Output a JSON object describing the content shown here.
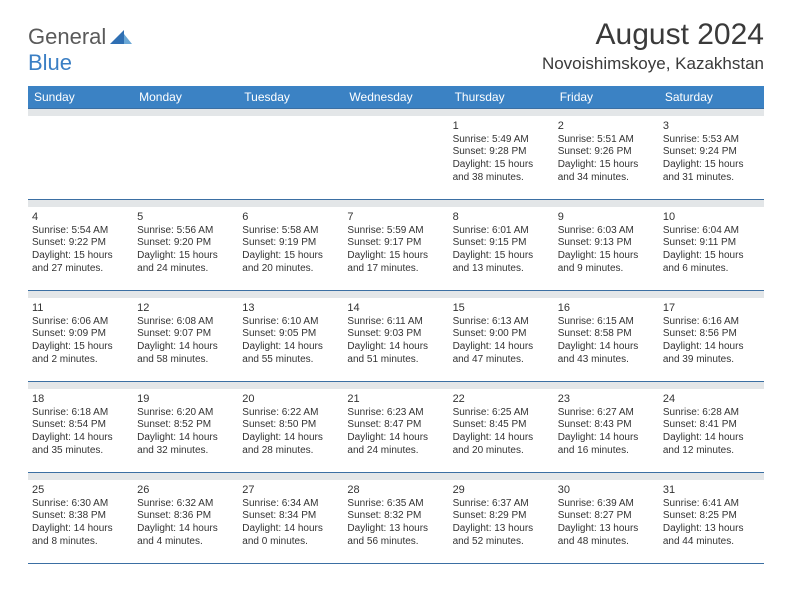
{
  "logo": {
    "word1": "General",
    "word2": "Blue",
    "tri_color": "#2f6fb3"
  },
  "title": "August 2024",
  "location": "Novoishimskoye, Kazakhstan",
  "colors": {
    "header_bg": "#3b82c4",
    "header_fg": "#ffffff",
    "sep_bg": "#e3e6e8",
    "rule": "#3b6fa3",
    "text": "#333333"
  },
  "dow": [
    "Sunday",
    "Monday",
    "Tuesday",
    "Wednesday",
    "Thursday",
    "Friday",
    "Saturday"
  ],
  "weeks": [
    [
      null,
      null,
      null,
      null,
      {
        "n": "1",
        "sr": "Sunrise: 5:49 AM",
        "ss": "Sunset: 9:28 PM",
        "dl1": "Daylight: 15 hours",
        "dl2": "and 38 minutes."
      },
      {
        "n": "2",
        "sr": "Sunrise: 5:51 AM",
        "ss": "Sunset: 9:26 PM",
        "dl1": "Daylight: 15 hours",
        "dl2": "and 34 minutes."
      },
      {
        "n": "3",
        "sr": "Sunrise: 5:53 AM",
        "ss": "Sunset: 9:24 PM",
        "dl1": "Daylight: 15 hours",
        "dl2": "and 31 minutes."
      }
    ],
    [
      {
        "n": "4",
        "sr": "Sunrise: 5:54 AM",
        "ss": "Sunset: 9:22 PM",
        "dl1": "Daylight: 15 hours",
        "dl2": "and 27 minutes."
      },
      {
        "n": "5",
        "sr": "Sunrise: 5:56 AM",
        "ss": "Sunset: 9:20 PM",
        "dl1": "Daylight: 15 hours",
        "dl2": "and 24 minutes."
      },
      {
        "n": "6",
        "sr": "Sunrise: 5:58 AM",
        "ss": "Sunset: 9:19 PM",
        "dl1": "Daylight: 15 hours",
        "dl2": "and 20 minutes."
      },
      {
        "n": "7",
        "sr": "Sunrise: 5:59 AM",
        "ss": "Sunset: 9:17 PM",
        "dl1": "Daylight: 15 hours",
        "dl2": "and 17 minutes."
      },
      {
        "n": "8",
        "sr": "Sunrise: 6:01 AM",
        "ss": "Sunset: 9:15 PM",
        "dl1": "Daylight: 15 hours",
        "dl2": "and 13 minutes."
      },
      {
        "n": "9",
        "sr": "Sunrise: 6:03 AM",
        "ss": "Sunset: 9:13 PM",
        "dl1": "Daylight: 15 hours",
        "dl2": "and 9 minutes."
      },
      {
        "n": "10",
        "sr": "Sunrise: 6:04 AM",
        "ss": "Sunset: 9:11 PM",
        "dl1": "Daylight: 15 hours",
        "dl2": "and 6 minutes."
      }
    ],
    [
      {
        "n": "11",
        "sr": "Sunrise: 6:06 AM",
        "ss": "Sunset: 9:09 PM",
        "dl1": "Daylight: 15 hours",
        "dl2": "and 2 minutes."
      },
      {
        "n": "12",
        "sr": "Sunrise: 6:08 AM",
        "ss": "Sunset: 9:07 PM",
        "dl1": "Daylight: 14 hours",
        "dl2": "and 58 minutes."
      },
      {
        "n": "13",
        "sr": "Sunrise: 6:10 AM",
        "ss": "Sunset: 9:05 PM",
        "dl1": "Daylight: 14 hours",
        "dl2": "and 55 minutes."
      },
      {
        "n": "14",
        "sr": "Sunrise: 6:11 AM",
        "ss": "Sunset: 9:03 PM",
        "dl1": "Daylight: 14 hours",
        "dl2": "and 51 minutes."
      },
      {
        "n": "15",
        "sr": "Sunrise: 6:13 AM",
        "ss": "Sunset: 9:00 PM",
        "dl1": "Daylight: 14 hours",
        "dl2": "and 47 minutes."
      },
      {
        "n": "16",
        "sr": "Sunrise: 6:15 AM",
        "ss": "Sunset: 8:58 PM",
        "dl1": "Daylight: 14 hours",
        "dl2": "and 43 minutes."
      },
      {
        "n": "17",
        "sr": "Sunrise: 6:16 AM",
        "ss": "Sunset: 8:56 PM",
        "dl1": "Daylight: 14 hours",
        "dl2": "and 39 minutes."
      }
    ],
    [
      {
        "n": "18",
        "sr": "Sunrise: 6:18 AM",
        "ss": "Sunset: 8:54 PM",
        "dl1": "Daylight: 14 hours",
        "dl2": "and 35 minutes."
      },
      {
        "n": "19",
        "sr": "Sunrise: 6:20 AM",
        "ss": "Sunset: 8:52 PM",
        "dl1": "Daylight: 14 hours",
        "dl2": "and 32 minutes."
      },
      {
        "n": "20",
        "sr": "Sunrise: 6:22 AM",
        "ss": "Sunset: 8:50 PM",
        "dl1": "Daylight: 14 hours",
        "dl2": "and 28 minutes."
      },
      {
        "n": "21",
        "sr": "Sunrise: 6:23 AM",
        "ss": "Sunset: 8:47 PM",
        "dl1": "Daylight: 14 hours",
        "dl2": "and 24 minutes."
      },
      {
        "n": "22",
        "sr": "Sunrise: 6:25 AM",
        "ss": "Sunset: 8:45 PM",
        "dl1": "Daylight: 14 hours",
        "dl2": "and 20 minutes."
      },
      {
        "n": "23",
        "sr": "Sunrise: 6:27 AM",
        "ss": "Sunset: 8:43 PM",
        "dl1": "Daylight: 14 hours",
        "dl2": "and 16 minutes."
      },
      {
        "n": "24",
        "sr": "Sunrise: 6:28 AM",
        "ss": "Sunset: 8:41 PM",
        "dl1": "Daylight: 14 hours",
        "dl2": "and 12 minutes."
      }
    ],
    [
      {
        "n": "25",
        "sr": "Sunrise: 6:30 AM",
        "ss": "Sunset: 8:38 PM",
        "dl1": "Daylight: 14 hours",
        "dl2": "and 8 minutes."
      },
      {
        "n": "26",
        "sr": "Sunrise: 6:32 AM",
        "ss": "Sunset: 8:36 PM",
        "dl1": "Daylight: 14 hours",
        "dl2": "and 4 minutes."
      },
      {
        "n": "27",
        "sr": "Sunrise: 6:34 AM",
        "ss": "Sunset: 8:34 PM",
        "dl1": "Daylight: 14 hours",
        "dl2": "and 0 minutes."
      },
      {
        "n": "28",
        "sr": "Sunrise: 6:35 AM",
        "ss": "Sunset: 8:32 PM",
        "dl1": "Daylight: 13 hours",
        "dl2": "and 56 minutes."
      },
      {
        "n": "29",
        "sr": "Sunrise: 6:37 AM",
        "ss": "Sunset: 8:29 PM",
        "dl1": "Daylight: 13 hours",
        "dl2": "and 52 minutes."
      },
      {
        "n": "30",
        "sr": "Sunrise: 6:39 AM",
        "ss": "Sunset: 8:27 PM",
        "dl1": "Daylight: 13 hours",
        "dl2": "and 48 minutes."
      },
      {
        "n": "31",
        "sr": "Sunrise: 6:41 AM",
        "ss": "Sunset: 8:25 PM",
        "dl1": "Daylight: 13 hours",
        "dl2": "and 44 minutes."
      }
    ]
  ]
}
